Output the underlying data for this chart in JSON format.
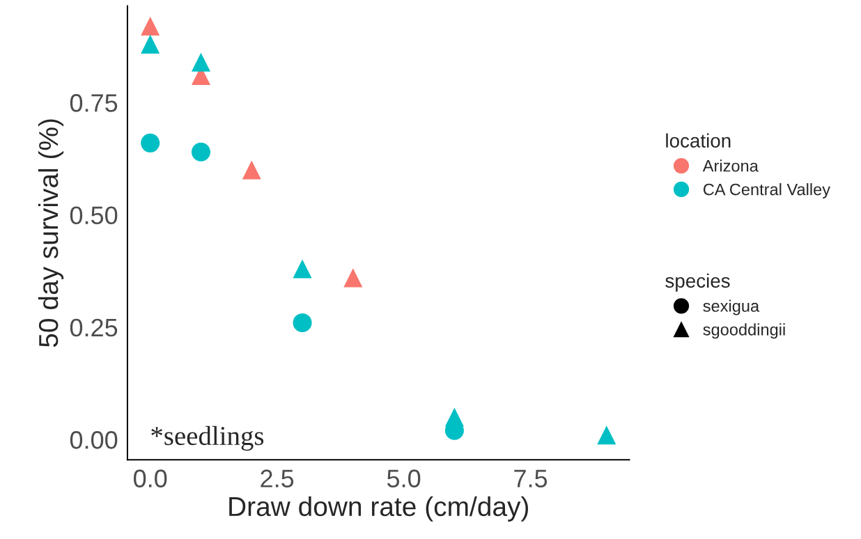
{
  "chart_data": {
    "type": "scatter",
    "xlabel": "Draw down rate (cm/day)",
    "ylabel": "50 day survival (%)",
    "xlim": [
      -0.45,
      9.45
    ],
    "ylim": [
      -0.045,
      0.965
    ],
    "xticks": [
      {
        "value": 0,
        "label": "0.0"
      },
      {
        "value": 2.5,
        "label": "2.5"
      },
      {
        "value": 5,
        "label": "5.0"
      },
      {
        "value": 7.5,
        "label": "7.5"
      }
    ],
    "yticks": [
      {
        "value": 0,
        "label": "0.00"
      },
      {
        "value": 0.25,
        "label": "0.25"
      },
      {
        "value": 0.5,
        "label": "0.50"
      },
      {
        "value": 0.75,
        "label": "0.75"
      }
    ],
    "grid": false,
    "legend": "right",
    "legend_title": [
      "location",
      "species"
    ],
    "series": [
      {
        "name": "Arizona",
        "color": "#f8766d",
        "marker": "triangle",
        "x": [
          0,
          1,
          2,
          4
        ],
        "values": [
          0.92,
          0.81,
          0.6,
          0.36
        ]
      },
      {
        "name": "CA Central Valley",
        "color": "#00bfc4",
        "marker": "triangle",
        "x": [
          0,
          1,
          3,
          6,
          9
        ],
        "values": [
          0.88,
          0.84,
          0.38,
          0.05,
          0.01
        ]
      },
      {
        "color": "#00bfc4",
        "marker": "circle",
        "x": [
          0,
          1,
          3,
          6
        ],
        "values": [
          0.66,
          0.64,
          0.26,
          0.02
        ]
      }
    ],
    "annotations": [
      "*seedlings",
      "sexigua",
      "sgooddingii"
    ]
  }
}
